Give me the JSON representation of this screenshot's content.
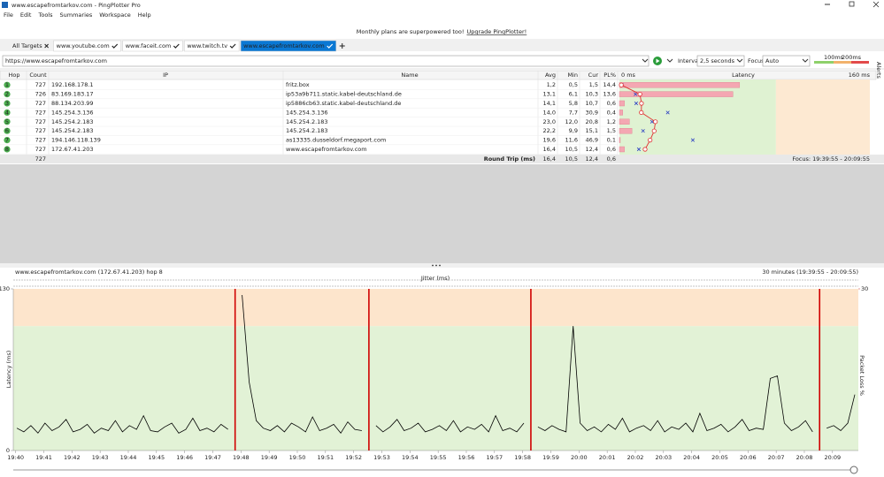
{
  "window": {
    "title": "www.escapefromtarkov.com - PingPlotter Pro"
  },
  "menu": [
    "File",
    "Edit",
    "Tools",
    "Summaries",
    "Workspace",
    "Help"
  ],
  "banner": {
    "text": "Monthly plans are superpowered too!",
    "link": "Upgrade PingPlotter!"
  },
  "tabs": {
    "all": "All Targets",
    "items": [
      "www.youtube.com",
      "www.faceit.com",
      "www.twitch.tv",
      "www.escapefromtarkov.com"
    ]
  },
  "toolbar": {
    "url": "https://www.escapefromtarkov.com",
    "interval_label": "Interval",
    "interval": "2,5 seconds",
    "focus_label": "Focus",
    "focus": "Auto",
    "alerts": "Alerts"
  },
  "thresholds": [
    {
      "value": 100,
      "label": "100ms"
    },
    {
      "value": 200,
      "label": "200ms"
    }
  ],
  "table": {
    "columns": [
      "Hop",
      "Count",
      "IP",
      "Name",
      "Avg",
      "Min",
      "Cur",
      "PL%",
      "Latency"
    ],
    "latency_scale": [
      {
        "value": 0,
        "label": "0 ms"
      },
      {
        "value": 160,
        "label": "160 ms"
      }
    ],
    "rows": [
      {
        "hop": 1,
        "count": 727,
        "ip": "192.168.178.1",
        "name": "fritz.box",
        "avg": {
          "value": 1.2,
          "label": "1,2"
        },
        "min": {
          "value": 0.5,
          "label": "0,5"
        },
        "cur": {
          "value": 1.5,
          "label": "1,5"
        },
        "pl": {
          "value": 14.4,
          "label": "14,4"
        }
      },
      {
        "hop": 2,
        "count": 726,
        "ip": "83.169.183.17",
        "name": "ip53a9b711.static.kabel-deutschland.de",
        "avg": {
          "value": 13.1,
          "label": "13,1"
        },
        "min": {
          "value": 6.1,
          "label": "6,1"
        },
        "cur": {
          "value": 10.3,
          "label": "10,3"
        },
        "pl": {
          "value": 13.6,
          "label": "13,6"
        }
      },
      {
        "hop": 3,
        "count": 727,
        "ip": "88.134.203.99",
        "name": "ip5886cb63.static.kabel-deutschland.de",
        "avg": {
          "value": 14.1,
          "label": "14,1"
        },
        "min": {
          "value": 5.8,
          "label": "5,8"
        },
        "cur": {
          "value": 10.7,
          "label": "10,7"
        },
        "pl": {
          "value": 0.6,
          "label": "0,6"
        }
      },
      {
        "hop": 4,
        "count": 727,
        "ip": "145.254.3.136",
        "name": "145.254.3.136",
        "avg": {
          "value": 14.0,
          "label": "14,0"
        },
        "min": {
          "value": 7.7,
          "label": "7,7"
        },
        "cur": {
          "value": 30.9,
          "label": "30,9"
        },
        "pl": {
          "value": 0.4,
          "label": "0,4"
        }
      },
      {
        "hop": 5,
        "count": 727,
        "ip": "145.254.2.183",
        "name": "145.254.2.183",
        "avg": {
          "value": 23.0,
          "label": "23,0"
        },
        "min": {
          "value": 12.0,
          "label": "12,0"
        },
        "cur": {
          "value": 20.8,
          "label": "20,8"
        },
        "pl": {
          "value": 1.2,
          "label": "1,2"
        }
      },
      {
        "hop": 6,
        "count": 727,
        "ip": "145.254.2.183",
        "name": "145.254.2.183",
        "avg": {
          "value": 22.2,
          "label": "22,2"
        },
        "min": {
          "value": 9.9,
          "label": "9,9"
        },
        "cur": {
          "value": 15.1,
          "label": "15,1"
        },
        "pl": {
          "value": 1.5,
          "label": "1,5"
        }
      },
      {
        "hop": 7,
        "count": 727,
        "ip": "194.146.118.139",
        "name": "as13335.dusseldorf.megaport.com",
        "avg": {
          "value": 19.6,
          "label": "19,6"
        },
        "min": {
          "value": 11.6,
          "label": "11,6"
        },
        "cur": {
          "value": 46.9,
          "label": "46,9"
        },
        "pl": {
          "value": 0.1,
          "label": "0,1"
        }
      },
      {
        "hop": 8,
        "count": 727,
        "ip": "172.67.41.203",
        "name": "www.escapefromtarkov.com",
        "avg": {
          "value": 16.4,
          "label": "16,4"
        },
        "min": {
          "value": 10.5,
          "label": "10,5"
        },
        "cur": {
          "value": 12.4,
          "label": "12,4"
        },
        "pl": {
          "value": 0.6,
          "label": "0,6"
        }
      }
    ],
    "summary": {
      "count": 727,
      "label": "Round Trip (ms)",
      "avg": {
        "value": 16.4,
        "label": "16,4"
      },
      "min": {
        "value": 10.5,
        "label": "10,5"
      },
      "cur": {
        "value": 12.4,
        "label": "12,4"
      },
      "pl": {
        "value": 0.6,
        "label": "0,6"
      },
      "focus": "Focus: 19:39:55 - 20:09:55"
    }
  },
  "graph": {
    "type": "line",
    "title": "www.escapefromtarkov.com (172.67.41.203) hop 8",
    "range": "30 minutes (19:39:55 - 20:09:55)",
    "ylabel": "Latency (ms)",
    "y2label": "Packet Loss %",
    "jitter_label": "Jitter (ms)",
    "ylim": [
      0,
      130
    ],
    "yticks": [
      0,
      130
    ],
    "y2lim": [
      0,
      30
    ],
    "y2ticks": [
      30
    ],
    "color": "#000000",
    "loss_color": "#d00000",
    "xticks": [
      "19:40",
      "19:41",
      "19:42",
      "19:43",
      "19:44",
      "19:45",
      "19:46",
      "19:47",
      "19:48",
      "19:49",
      "19:50",
      "19:51",
      "19:52",
      "19:53",
      "19:54",
      "19:55",
      "19:56",
      "19:57",
      "19:58",
      "19:59",
      "20:00",
      "20:01",
      "20:02",
      "20:03",
      "20:04",
      "20:05",
      "20:06",
      "20:07",
      "20:08",
      "20:09"
    ],
    "values": [
      18,
      15,
      20,
      14,
      22,
      16,
      19,
      25,
      15,
      17,
      21,
      14,
      18,
      16,
      24,
      15,
      20,
      17,
      28,
      16,
      15,
      19,
      22,
      14,
      17,
      26,
      16,
      18,
      15,
      21,
      17,
      null,
      125,
      55,
      24,
      18,
      16,
      20,
      15,
      22,
      19,
      15,
      27,
      16,
      18,
      21,
      14,
      23,
      17,
      16,
      null,
      20,
      15,
      19,
      25,
      16,
      18,
      22,
      15,
      17,
      20,
      16,
      24,
      15,
      19,
      17,
      21,
      15,
      28,
      16,
      18,
      15,
      22,
      null,
      19,
      16,
      20,
      17,
      15,
      100,
      22,
      16,
      19,
      15,
      21,
      17,
      26,
      15,
      18,
      20,
      16,
      24,
      15,
      19,
      17,
      22,
      15,
      30,
      16,
      18,
      21,
      15,
      19,
      25,
      16,
      18,
      17,
      58,
      60,
      22,
      16,
      19,
      24,
      15,
      null,
      18,
      20,
      16,
      22,
      45
    ]
  }
}
